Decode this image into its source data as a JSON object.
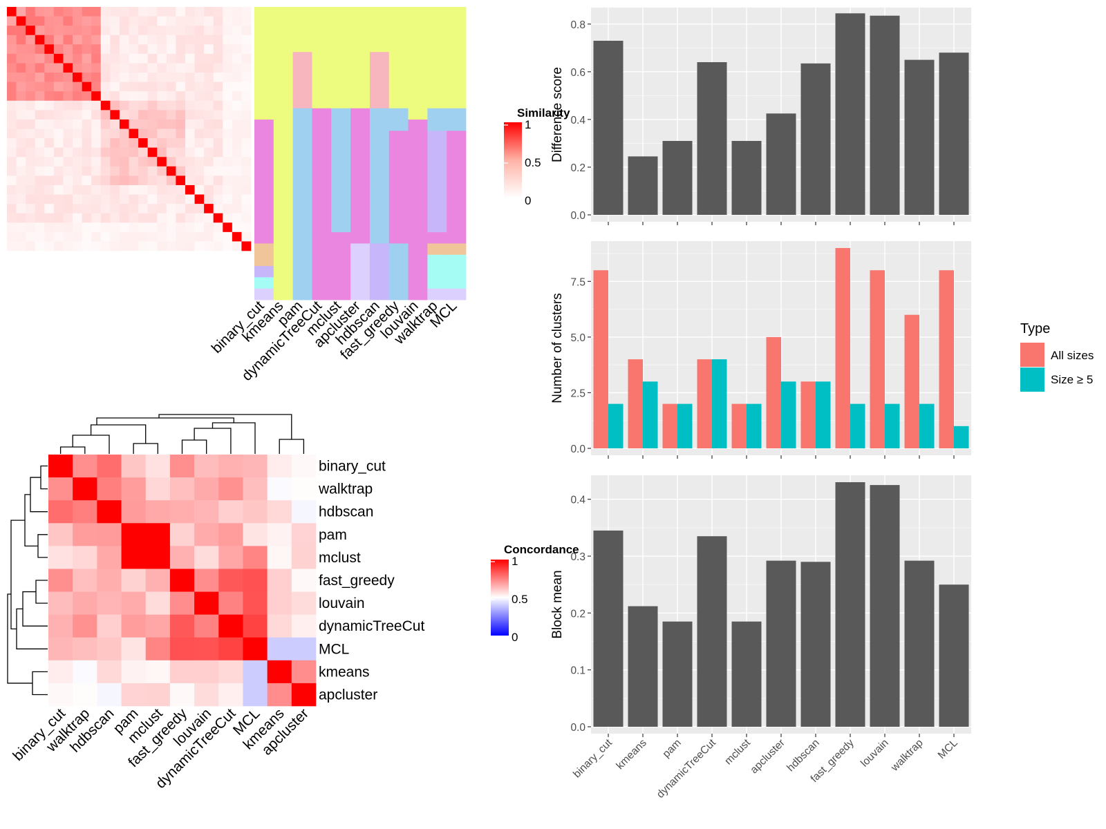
{
  "similarity_heatmap": {
    "legend_title": "Similarity",
    "legend_ticks": [
      "1",
      "0.5",
      "0"
    ],
    "method_labels": [
      "binary_cut",
      "kmeans",
      "pam",
      "dynamicTreeCut",
      "mclust",
      "apcluster",
      "hdbscan",
      "fast_greedy",
      "louvain",
      "walktrap",
      "MCL"
    ],
    "n_terms": 26,
    "cluster_colors": [
      "#EDFC7E",
      "#F7B5BE",
      "#9FD0F0",
      "#EA86E0",
      "#C7B6FA",
      "#F1C59A",
      "#A5FCF5",
      "#DCD0FF"
    ]
  },
  "concordance_heatmap": {
    "legend_title": "Concordance",
    "legend_ticks": [
      "1",
      "0.5",
      "0"
    ],
    "row_labels": [
      "binary_cut",
      "walktrap",
      "hdbscan",
      "pam",
      "mclust",
      "fast_greedy",
      "louvain",
      "dynamicTreeCut",
      "MCL",
      "kmeans",
      "apcluster"
    ],
    "col_labels": [
      "binary_cut",
      "walktrap",
      "hdbscan",
      "pam",
      "mclust",
      "fast_greedy",
      "louvain",
      "dynamicTreeCut",
      "MCL",
      "kmeans",
      "apcluster"
    ]
  },
  "chart_data": [
    {
      "type": "bar",
      "categories": [
        "binary_cut",
        "kmeans",
        "pam",
        "dynamicTreeCut",
        "mclust",
        "apcluster",
        "hdbscan",
        "fast_greedy",
        "louvain",
        "walktrap",
        "MCL"
      ],
      "values": [
        0.73,
        0.245,
        0.31,
        0.64,
        0.31,
        0.425,
        0.635,
        0.845,
        0.835,
        0.65,
        0.68
      ],
      "ylabel": "Difference score",
      "ylim": [
        0,
        0.84
      ],
      "yticks": [
        "0.0",
        "0.2",
        "0.4",
        "0.6",
        "0.8"
      ],
      "bar_color": "#595959",
      "grid": true
    },
    {
      "type": "bar",
      "categories": [
        "binary_cut",
        "kmeans",
        "pam",
        "dynamicTreeCut",
        "mclust",
        "apcluster",
        "hdbscan",
        "fast_greedy",
        "louvain",
        "walktrap",
        "MCL"
      ],
      "series": [
        {
          "name": "All sizes",
          "values": [
            8,
            4,
            2,
            4,
            2,
            5,
            3,
            9,
            8,
            6,
            8
          ],
          "color": "#F8766D"
        },
        {
          "name": "Size ≥ 5",
          "values": [
            2,
            3,
            2,
            4,
            2,
            3,
            3,
            2,
            2,
            2,
            1
          ],
          "color": "#00BFC4"
        }
      ],
      "ylabel": "Number of clusters",
      "ylim": [
        0,
        9
      ],
      "yticks": [
        "0.0",
        "2.5",
        "5.0",
        "7.5"
      ],
      "legend_title": "Type",
      "legend": "right",
      "grid": true
    },
    {
      "type": "bar",
      "categories": [
        "binary_cut",
        "kmeans",
        "pam",
        "dynamicTreeCut",
        "mclust",
        "apcluster",
        "hdbscan",
        "fast_greedy",
        "louvain",
        "walktrap",
        "MCL"
      ],
      "values": [
        0.345,
        0.212,
        0.185,
        0.335,
        0.185,
        0.292,
        0.29,
        0.43,
        0.425,
        0.292,
        0.25
      ],
      "ylabel": "Block mean",
      "ylim": [
        0,
        0.43
      ],
      "yticks": [
        "0.0",
        "0.1",
        "0.2",
        "0.3",
        "0.4"
      ],
      "bar_color": "#595959",
      "grid": true
    }
  ]
}
